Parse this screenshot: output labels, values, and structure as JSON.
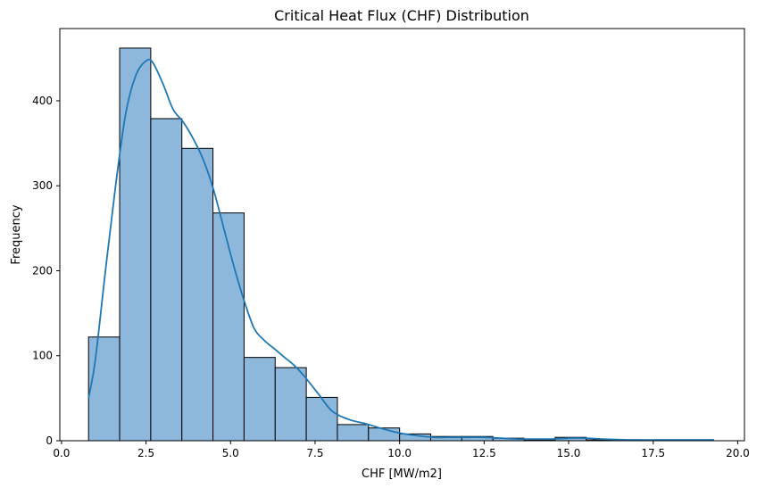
{
  "chart_data": {
    "type": "bar",
    "title": "Critical Heat Flux (CHF) Distribution",
    "xlabel": "CHF [MW/m2]",
    "ylabel": "Frequency",
    "xlim": [
      -0.05,
      20.2
    ],
    "ylim": [
      0,
      485
    ],
    "xticks": [
      0.0,
      2.5,
      5.0,
      7.5,
      10.0,
      12.5,
      15.0,
      17.5,
      20.0
    ],
    "xtick_labels": [
      "0.0",
      "2.5",
      "5.0",
      "7.5",
      "10.0",
      "12.5",
      "15.0",
      "17.5",
      "20.0"
    ],
    "yticks": [
      0,
      100,
      200,
      300,
      400
    ],
    "ytick_labels": [
      "0",
      "100",
      "200",
      "300",
      "400"
    ],
    "bins": [
      {
        "x0": 0.8,
        "x1": 1.72,
        "count": 122
      },
      {
        "x0": 1.72,
        "x1": 2.64,
        "count": 462
      },
      {
        "x0": 2.64,
        "x1": 3.56,
        "count": 379
      },
      {
        "x0": 3.56,
        "x1": 4.48,
        "count": 344
      },
      {
        "x0": 4.48,
        "x1": 5.4,
        "count": 268
      },
      {
        "x0": 5.4,
        "x1": 6.32,
        "count": 98
      },
      {
        "x0": 6.32,
        "x1": 7.24,
        "count": 86
      },
      {
        "x0": 7.24,
        "x1": 8.16,
        "count": 51
      },
      {
        "x0": 8.16,
        "x1": 9.08,
        "count": 19
      },
      {
        "x0": 9.08,
        "x1": 10.0,
        "count": 15
      },
      {
        "x0": 10.0,
        "x1": 10.92,
        "count": 8
      },
      {
        "x0": 10.92,
        "x1": 11.84,
        "count": 5
      },
      {
        "x0": 11.84,
        "x1": 12.76,
        "count": 5
      },
      {
        "x0": 12.76,
        "x1": 13.68,
        "count": 3
      },
      {
        "x0": 13.68,
        "x1": 14.6,
        "count": 1
      },
      {
        "x0": 14.6,
        "x1": 15.52,
        "count": 4
      },
      {
        "x0": 15.52,
        "x1": 16.44,
        "count": 1
      },
      {
        "x0": 16.44,
        "x1": 17.36,
        "count": 1
      },
      {
        "x0": 17.36,
        "x1": 18.28,
        "count": 1
      },
      {
        "x0": 18.28,
        "x1": 19.2,
        "count": 1
      }
    ],
    "kde": {
      "x": [
        0.8,
        1.0,
        1.3,
        1.6,
        1.9,
        2.2,
        2.5,
        2.7,
        3.0,
        3.3,
        3.6,
        3.9,
        4.2,
        4.5,
        4.8,
        5.1,
        5.4,
        5.7,
        6.0,
        6.3,
        6.6,
        6.9,
        7.2,
        7.6,
        8.0,
        8.5,
        9.0,
        9.5,
        10.0,
        10.5,
        11.0,
        11.5,
        12.0,
        12.5,
        13.0,
        13.5,
        14.0,
        14.5,
        15.0,
        15.5,
        16.0,
        17.0,
        18.0,
        19.3
      ],
      "y": [
        50,
        95,
        200,
        300,
        385,
        430,
        447,
        445,
        420,
        390,
        375,
        355,
        330,
        295,
        250,
        205,
        165,
        132,
        118,
        108,
        98,
        88,
        75,
        55,
        35,
        25,
        20,
        14,
        9,
        6,
        4,
        4,
        4,
        4,
        3,
        2,
        2,
        2,
        3,
        3,
        2,
        1,
        1,
        1
      ],
      "color": "#1f77b4"
    },
    "bar_color": "#8db8dc",
    "edge_color": "#000000",
    "grid": false
  }
}
